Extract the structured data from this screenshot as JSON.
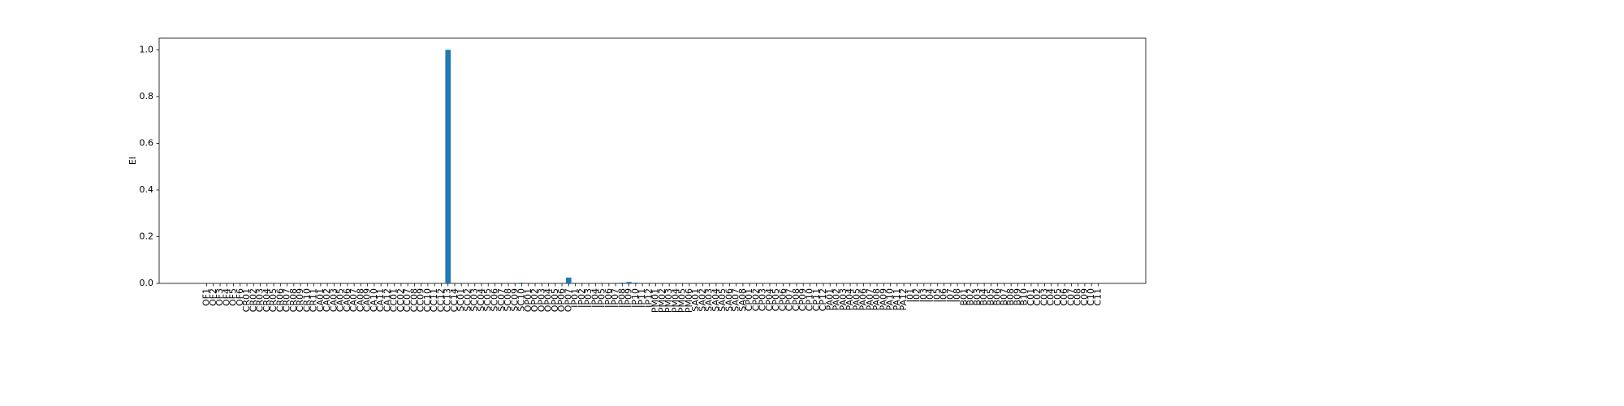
{
  "chart_data": {
    "type": "bar",
    "ylabel": "EI",
    "categories": [
      "OF1",
      "OF2",
      "OF3",
      "OF4",
      "OF5",
      "OF6",
      "CR01",
      "CR02",
      "CR03",
      "CR04",
      "CR05",
      "CR06",
      "CR07",
      "CR08",
      "CR09",
      "CR10",
      "CR11",
      "CA01",
      "CA02",
      "CA03",
      "CA05",
      "CA06",
      "CA07",
      "CA08",
      "CA09",
      "CA10",
      "CA11",
      "CA12",
      "CC01",
      "CC02",
      "CC07",
      "CC08",
      "CC09",
      "CC10",
      "CC11",
      "CC12",
      "CC13",
      "CC14",
      "SC01",
      "SC02",
      "SC03",
      "SC04",
      "SC05",
      "SC06",
      "SC07",
      "SC08",
      "SC09",
      "SC10",
      "OP01",
      "OP02",
      "OP03",
      "OP04",
      "OP05",
      "OP06",
      "OP07",
      "IP01",
      "IP02",
      "IP03",
      "IP04",
      "IP05",
      "IP06",
      "IP07",
      "IP08",
      "IP09",
      "IP10",
      "IP11",
      "IP12",
      "PM01",
      "PM02",
      "PM03",
      "PM04",
      "PM05",
      "PM06",
      "SA01",
      "SA02",
      "SA03",
      "SA04",
      "SA05",
      "SA06",
      "SA07",
      "SA08",
      "CP01",
      "CP02",
      "CP03",
      "CP04",
      "CP05",
      "CP06",
      "CP07",
      "CP08",
      "CP09",
      "CP10",
      "CP11",
      "CP12",
      "PA01",
      "PA02",
      "PA03",
      "PA04",
      "PA05",
      "PA06",
      "PA07",
      "PA08",
      "PA09",
      "PA10",
      "PA11",
      "PA12",
      "I01",
      "I02",
      "I03",
      "I04",
      "I05",
      "I06",
      "I07",
      "I08",
      "B01",
      "B02",
      "B03",
      "B04",
      "B05",
      "B06",
      "B07",
      "B08",
      "B09",
      "B10",
      "C01",
      "C02",
      "C03",
      "C04",
      "C05",
      "C06",
      "C07",
      "C08",
      "C09",
      "C10",
      "C11"
    ],
    "values": [
      0,
      0,
      0,
      0,
      0,
      0,
      0,
      0,
      0,
      0,
      0,
      0,
      0,
      0,
      0,
      0,
      0,
      0,
      0,
      0,
      0,
      0,
      0,
      0,
      0,
      0,
      0,
      0,
      0,
      0,
      0,
      0,
      0,
      0,
      0,
      0,
      1.0,
      0,
      0,
      0,
      0,
      0,
      0,
      0,
      0,
      0,
      0,
      0.003,
      0,
      0,
      0,
      0,
      0,
      0,
      0.025,
      0,
      0,
      0,
      0,
      0,
      0,
      0,
      0.003,
      0.006,
      0.003,
      0,
      0,
      0,
      0,
      0,
      0,
      0,
      0,
      0,
      0,
      0,
      0,
      0,
      0,
      0,
      0,
      0,
      0,
      0,
      0,
      0,
      0,
      0,
      0,
      0,
      0,
      0,
      0,
      0,
      0,
      0,
      0,
      0,
      0,
      0,
      0,
      0,
      0,
      0,
      0,
      0,
      0,
      0,
      0,
      0,
      0,
      0,
      0,
      0,
      0,
      0,
      0,
      0,
      0,
      0,
      0,
      0,
      0,
      0,
      0,
      0,
      0,
      0,
      0,
      0,
      0,
      0,
      0,
      0
    ],
    "color": "#1f77b4",
    "ylim": [
      0,
      1.05
    ],
    "yticks": [
      {
        "value": 0,
        "label": "0.0"
      },
      {
        "value": 0.2,
        "label": "0.2"
      },
      {
        "value": 0.4,
        "label": "0.4"
      },
      {
        "value": 0.6,
        "label": "0.6"
      },
      {
        "value": 0.8,
        "label": "0.8"
      },
      {
        "value": 1.0,
        "label": "1.0"
      }
    ],
    "grid": false
  }
}
